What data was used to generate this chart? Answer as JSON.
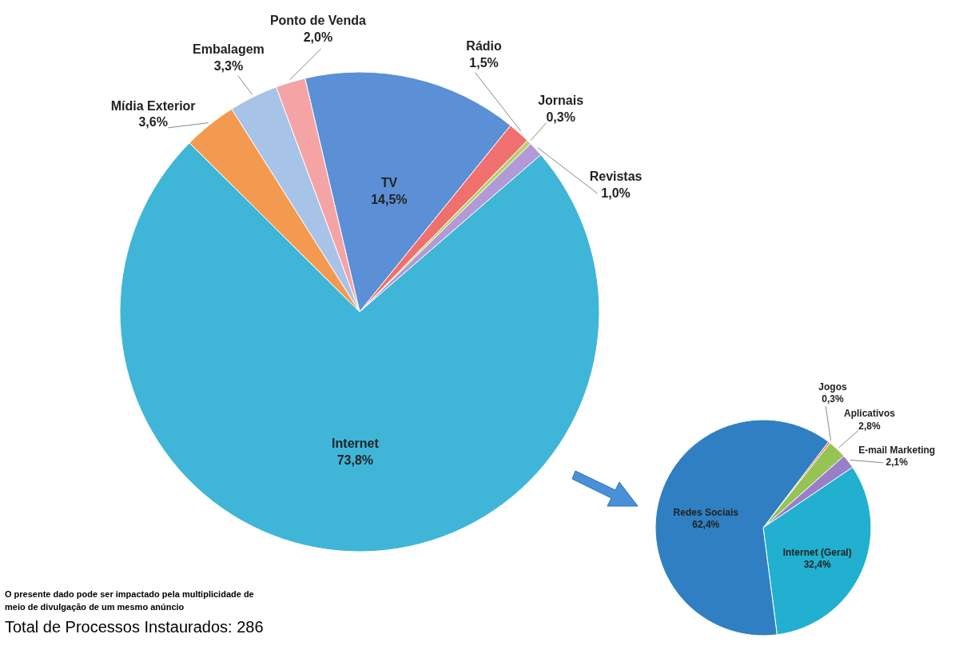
{
  "chart_data": [
    {
      "type": "pie",
      "categories": [
        "TV",
        "Rádio",
        "Jornais",
        "Revistas",
        "Internet",
        "Mídia Exterior",
        "Embalagem",
        "Ponto de Venda"
      ],
      "values": [
        14.5,
        1.5,
        0.3,
        1.0,
        73.8,
        3.6,
        3.3,
        2.0
      ],
      "colors": [
        "#5b8fd6",
        "#f07070",
        "#b5d36a",
        "#b39ad6",
        "#3fb6d8",
        "#f39a50",
        "#a8c3e8",
        "#f4a4a4"
      ],
      "value_labels": [
        "14,5%",
        "1,5%",
        "0,3%",
        "1,0%",
        "73,8%",
        "3,6%",
        "3,3%",
        "2,0%"
      ],
      "annotations": [
        "O presente dado pode ser impactado pela multiplicidade de meio de divulgação de um mesmo anúncio",
        "Total de Processos Instaurados: 286"
      ]
    },
    {
      "type": "pie",
      "categories": [
        "Jogos",
        "Aplicativos",
        "E-mail Marketing",
        "Internet (Geral)",
        "Redes Sociais"
      ],
      "values": [
        0.3,
        2.8,
        2.1,
        32.4,
        62.4
      ],
      "colors": [
        "#e07b55",
        "#96c354",
        "#9a7fc8",
        "#21b0d0",
        "#2f7fc2"
      ],
      "value_labels": [
        "0,3%",
        "2,8%",
        "2,1%",
        "32,4%",
        "62,4%"
      ]
    }
  ]
}
